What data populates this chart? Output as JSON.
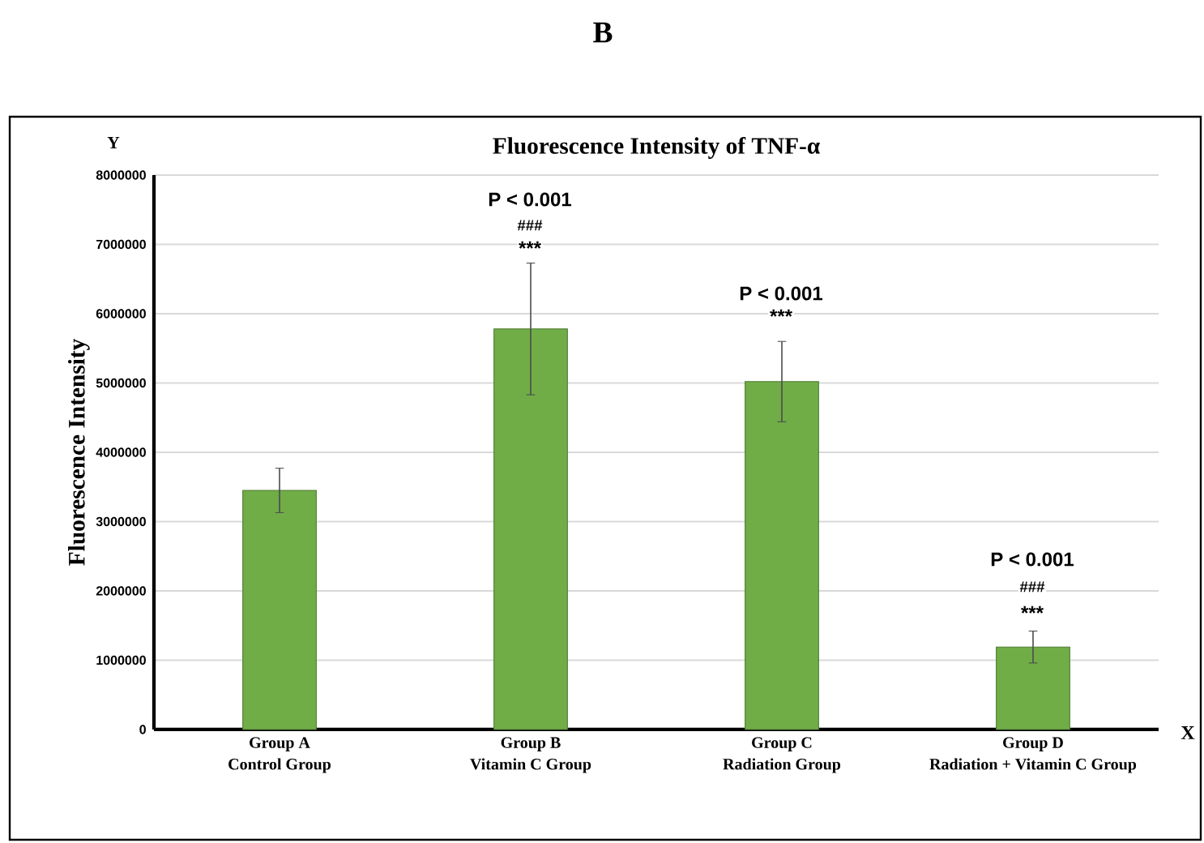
{
  "chart_data": {
    "type": "bar",
    "title": "Fluorescence Intensity of TNF-α",
    "ylabel": "Fluorescence Intensity",
    "categories": [
      "Group A Control Group",
      "Group B Vitamin C Group",
      "Group C Radiation Group",
      "Group D Radiation + Vitamin C Group"
    ],
    "values": [
      3450000,
      5780000,
      5020000,
      1190000
    ],
    "errors": [
      320000,
      950000,
      580000,
      230000
    ],
    "color": "#70ad47",
    "ylim": [
      0,
      8000000
    ],
    "yticks": [
      0,
      1000000,
      2000000,
      3000000,
      4000000,
      5000000,
      6000000,
      7000000,
      8000000
    ],
    "grid": "y",
    "annotations": [
      "B",
      "Y",
      "X",
      "P < 0.001",
      "###",
      "***",
      "P < 0.001",
      "***",
      "P < 0.001",
      "###",
      "***"
    ]
  }
}
